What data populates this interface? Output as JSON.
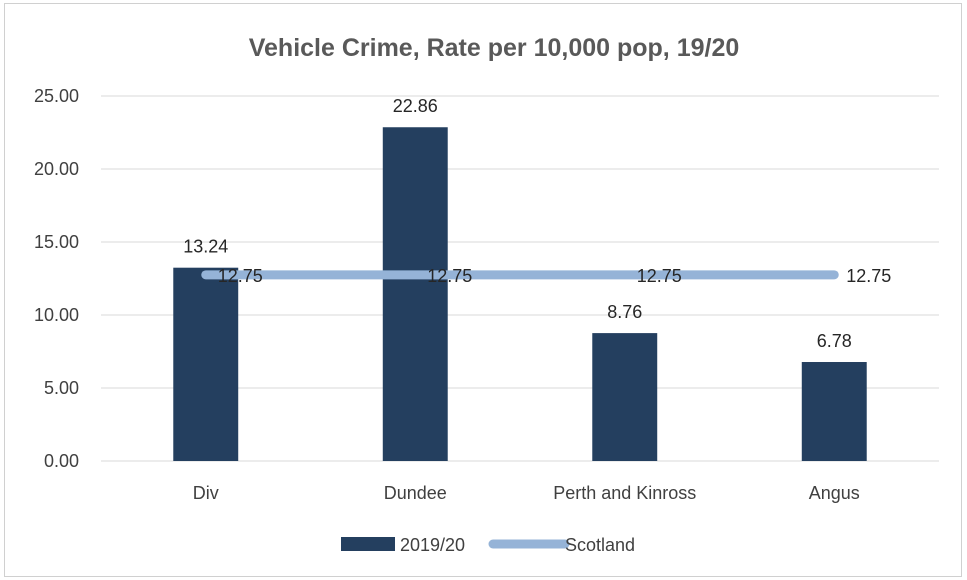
{
  "chart_data": {
    "type": "bar",
    "title": "Vehicle Crime, Rate per 10,000 pop, 19/20",
    "categories": [
      "Div",
      "Dundee",
      "Perth and Kinross",
      "Angus"
    ],
    "series": [
      {
        "name": "2019/20",
        "type": "bar",
        "color": "#243f5f",
        "values": [
          13.24,
          22.86,
          8.76,
          6.78
        ],
        "labels": [
          "13.24",
          "22.86",
          "8.76",
          "6.78"
        ]
      },
      {
        "name": "Scotland",
        "type": "line",
        "color": "#95b3d7",
        "values": [
          12.75,
          12.75,
          12.75,
          12.75
        ],
        "labels": [
          "12.75",
          "12.75",
          "12.75",
          "12.75"
        ]
      }
    ],
    "ylim": [
      0,
      25
    ],
    "yticks": [
      0,
      5,
      10,
      15,
      20,
      25
    ],
    "ytick_labels": [
      "0.00",
      "5.00",
      "10.00",
      "15.00",
      "20.00",
      "25.00"
    ],
    "grid": true,
    "legend": "bottom",
    "gridline_color": "#d9d9d9"
  }
}
